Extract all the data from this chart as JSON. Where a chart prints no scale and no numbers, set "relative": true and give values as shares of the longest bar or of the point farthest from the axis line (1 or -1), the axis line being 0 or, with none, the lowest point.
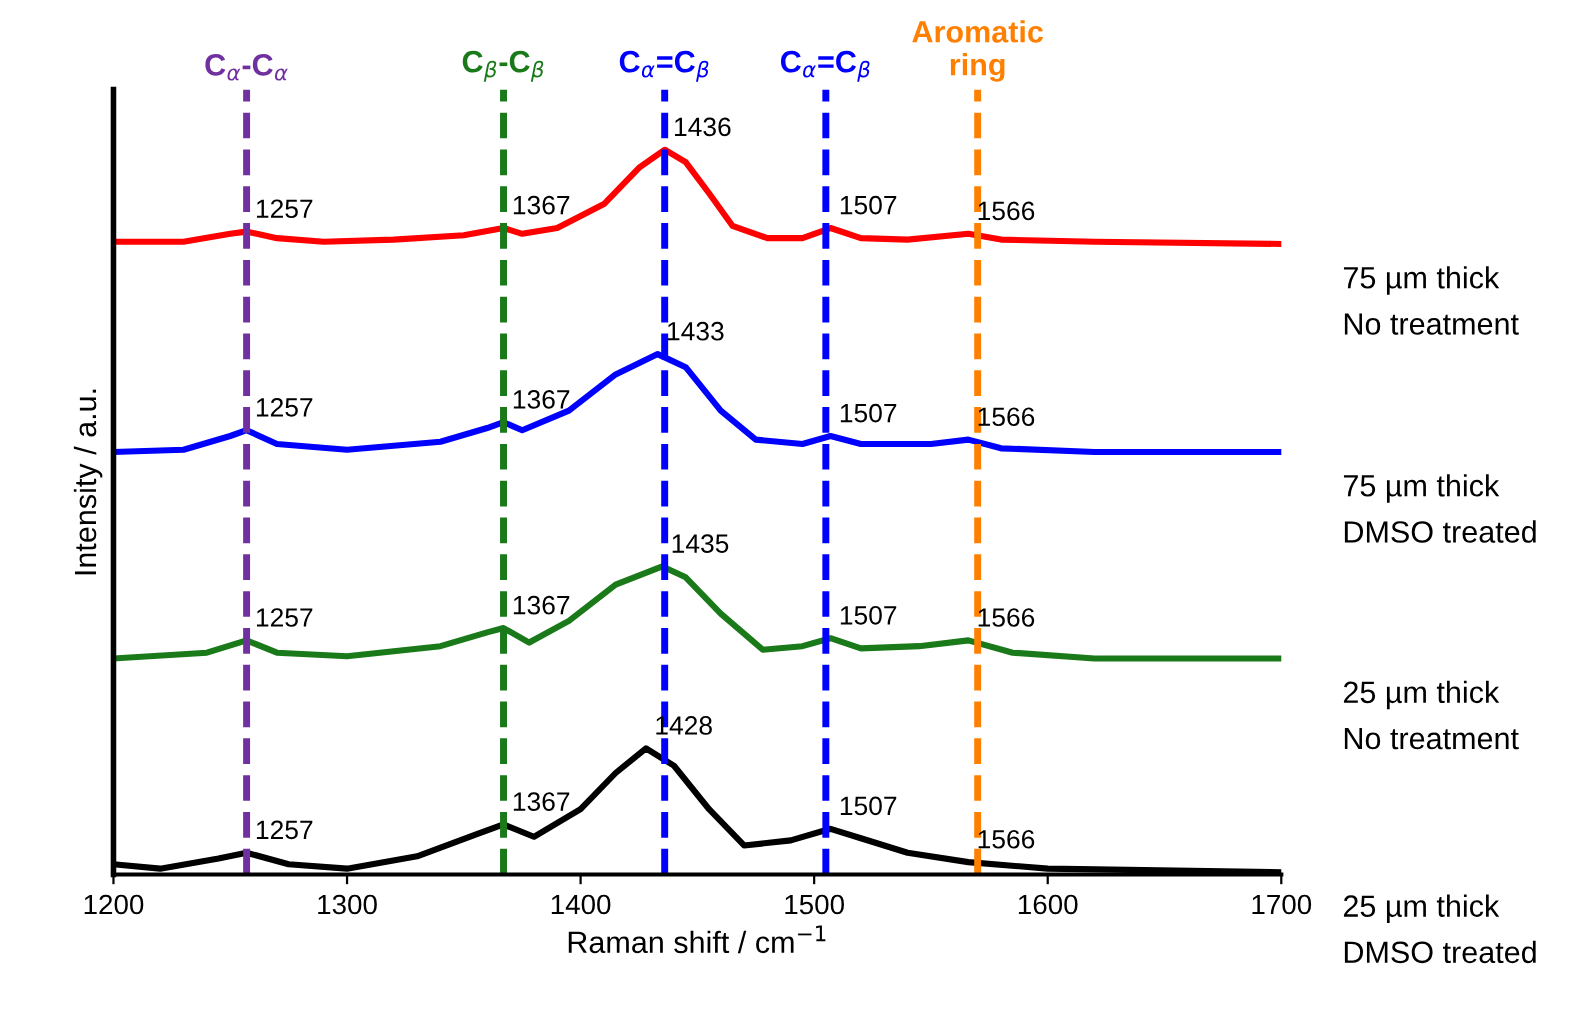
{
  "chart_data": {
    "type": "line",
    "relative": true,
    "xlabel": "Raman shift / cm$^{−1}$",
    "ylabel": "Intensity / a.u.",
    "xlim": [
      1200,
      1700
    ],
    "xticks": [
      1200,
      1300,
      1400,
      1500,
      1600,
      1700
    ],
    "tick_labels": "x",
    "grid": false,
    "legend": false,
    "marker": "none",
    "line_style": "solid",
    "series": [
      {
        "name": "75 µm thick\nNo treatment",
        "color": "#ff0000",
        "x": [
          1200,
          1230,
          1250,
          1257,
          1270,
          1290,
          1320,
          1350,
          1367,
          1375,
          1390,
          1410,
          1425,
          1436,
          1445,
          1455,
          1465,
          1480,
          1495,
          1507,
          1520,
          1540,
          1566,
          1580,
          1620,
          1700
        ],
        "values": [
          0.873,
          0.873,
          0.884,
          0.887,
          0.878,
          0.873,
          0.876,
          0.882,
          0.892,
          0.884,
          0.892,
          0.925,
          0.975,
          1.0,
          0.983,
          0.94,
          0.895,
          0.878,
          0.878,
          0.892,
          0.878,
          0.876,
          0.884,
          0.876,
          0.873,
          0.87
        ]
      },
      {
        "name": "75 µm thick\nDMSO treated",
        "color": "#0000ff",
        "x": [
          1200,
          1230,
          1250,
          1257,
          1270,
          1300,
          1340,
          1360,
          1367,
          1375,
          1395,
          1415,
          1433,
          1445,
          1460,
          1475,
          1495,
          1507,
          1520,
          1550,
          1566,
          1580,
          1620,
          1700
        ],
        "values": [
          0.583,
          0.586,
          0.605,
          0.613,
          0.594,
          0.586,
          0.597,
          0.616,
          0.624,
          0.613,
          0.64,
          0.69,
          0.718,
          0.7,
          0.64,
          0.6,
          0.594,
          0.605,
          0.594,
          0.594,
          0.6,
          0.588,
          0.583,
          0.583
        ]
      },
      {
        "name": "25 µm thick\nNo treatment",
        "color": "#1a7a1a",
        "x": [
          1200,
          1240,
          1257,
          1270,
          1300,
          1340,
          1360,
          1367,
          1378,
          1395,
          1415,
          1435,
          1445,
          1460,
          1478,
          1495,
          1507,
          1520,
          1545,
          1566,
          1585,
          1620,
          1700
        ],
        "values": [
          0.298,
          0.306,
          0.323,
          0.306,
          0.301,
          0.315,
          0.334,
          0.34,
          0.32,
          0.35,
          0.4,
          0.425,
          0.41,
          0.36,
          0.31,
          0.315,
          0.326,
          0.312,
          0.315,
          0.323,
          0.306,
          0.298,
          0.298
        ]
      },
      {
        "name": "25 µm thick\nDMSO treated",
        "color": "#000000",
        "x": [
          1200,
          1220,
          1245,
          1257,
          1275,
          1300,
          1330,
          1355,
          1367,
          1380,
          1400,
          1415,
          1428,
          1440,
          1455,
          1470,
          1490,
          1507,
          1520,
          1540,
          1566,
          1600,
          1700
        ],
        "values": [
          0.014,
          0.008,
          0.022,
          0.03,
          0.014,
          0.008,
          0.025,
          0.055,
          0.069,
          0.052,
          0.09,
          0.14,
          0.174,
          0.15,
          0.09,
          0.04,
          0.047,
          0.063,
          0.05,
          0.03,
          0.017,
          0.008,
          0.003
        ]
      }
    ],
    "ref_lines": [
      {
        "axis": "x",
        "value": 1257,
        "label": "C$_{α}$-C$_{α}$",
        "color": "#7030a0",
        "line_style": "dashed"
      },
      {
        "axis": "x",
        "value": 1367,
        "label": "C$_{β}$-C$_{β}$",
        "color": "#1a7a1a",
        "line_style": "dashed"
      },
      {
        "axis": "x",
        "value": 1436,
        "label": "C$_{α}$=C$_{β}$",
        "color": "#0000ff",
        "line_style": "dashed"
      },
      {
        "axis": "x",
        "value": 1505,
        "label": "C$_{α}$=C$_{β}$",
        "color": "#0000ff",
        "line_style": "dashed"
      },
      {
        "axis": "x",
        "value": 1570,
        "label": "Aromatic\nring",
        "color": "#ff8000",
        "line_style": "dashed"
      }
    ],
    "annotations": [
      {
        "text": "1257",
        "x": 1257,
        "y": 0.887
      },
      {
        "text": "1367",
        "x": 1367,
        "y": 0.892
      },
      {
        "text": "1436",
        "x": 1436,
        "y": 1.0
      },
      {
        "text": "1507",
        "x": 1507,
        "y": 0.892
      },
      {
        "text": "1566",
        "x": 1566,
        "y": 0.884
      },
      {
        "text": "1257",
        "x": 1257,
        "y": 0.613
      },
      {
        "text": "1367",
        "x": 1367,
        "y": 0.624
      },
      {
        "text": "1433",
        "x": 1433,
        "y": 0.718
      },
      {
        "text": "1507",
        "x": 1507,
        "y": 0.605
      },
      {
        "text": "1566",
        "x": 1566,
        "y": 0.6
      },
      {
        "text": "1257",
        "x": 1257,
        "y": 0.323
      },
      {
        "text": "1367",
        "x": 1367,
        "y": 0.34
      },
      {
        "text": "1435",
        "x": 1435,
        "y": 0.425
      },
      {
        "text": "1507",
        "x": 1507,
        "y": 0.326
      },
      {
        "text": "1566",
        "x": 1566,
        "y": 0.323
      },
      {
        "text": "1257",
        "x": 1257,
        "y": 0.03
      },
      {
        "text": "1367",
        "x": 1367,
        "y": 0.069
      },
      {
        "text": "1428",
        "x": 1428,
        "y": 0.174
      },
      {
        "text": "1507",
        "x": 1507,
        "y": 0.063
      },
      {
        "text": "1566",
        "x": 1566,
        "y": 0.017
      }
    ]
  }
}
